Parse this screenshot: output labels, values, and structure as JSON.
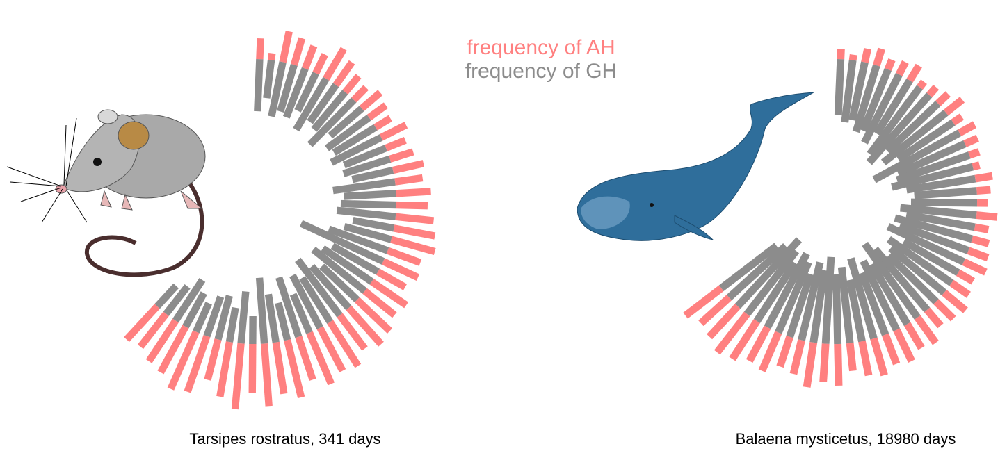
{
  "chart_data": {
    "type": "radial_bar",
    "series": [
      {
        "name": "frequency of AH",
        "color": "#ff8080"
      },
      {
        "name": "frequency of GH",
        "color": "#8c8c8c"
      }
    ],
    "panels": [
      {
        "title": "Tarsipes rostratus, 341 days",
        "series": [
          {
            "values": [
              30,
              10,
              45,
              40,
              35,
              30,
              50,
              40,
              30,
              25,
              35,
              30,
              25,
              40,
              30,
              35,
              45,
              40,
              50,
              45,
              55,
              60,
              65,
              50,
              55,
              45,
              60,
              55,
              65,
              70,
              60,
              75,
              70,
              80,
              65,
              85,
              75,
              90,
              70,
              95,
              80,
              60,
              85,
              90,
              75,
              70,
              60,
              65
            ]
          },
          {
            "values": [
              75,
              55,
              80,
              70,
              75,
              60,
              85,
              65,
              70,
              90,
              60,
              75,
              70,
              80,
              65,
              70,
              60,
              90,
              75,
              80,
              85,
              60,
              70,
              90,
              130,
              75,
              85,
              95,
              70,
              80,
              100,
              75,
              85,
              60,
              90,
              55,
              70,
              95,
              40,
              75,
              50,
              65,
              60,
              45,
              55,
              70,
              50,
              40
            ]
          }
        ]
      },
      {
        "title": "Balaena mysticetus, 18980 days",
        "series": [
          {
            "values": [
              15,
              8,
              20,
              25,
              15,
              20,
              25,
              10,
              15,
              20,
              30,
              15,
              25,
              20,
              15,
              10,
              25,
              20,
              15,
              30,
              20,
              25,
              30,
              35,
              25,
              30,
              40,
              35,
              30,
              45,
              40,
              50,
              45,
              55,
              50,
              40,
              60,
              55,
              65,
              50,
              45,
              60,
              55,
              65,
              70,
              60,
              55,
              65
            ]
          },
          {
            "values": [
              80,
              90,
              85,
              100,
              95,
              110,
              90,
              120,
              130,
              100,
              115,
              95,
              140,
              105,
              110,
              120,
              100,
              90,
              95,
              110,
              100,
              115,
              105,
              120,
              90,
              110,
              100,
              95,
              115,
              130,
              100,
              110,
              95,
              120,
              90,
              110,
              100,
              125,
              105,
              115,
              95,
              110,
              120,
              100,
              115,
              130,
              110,
              100
            ]
          }
        ]
      }
    ]
  }
}
